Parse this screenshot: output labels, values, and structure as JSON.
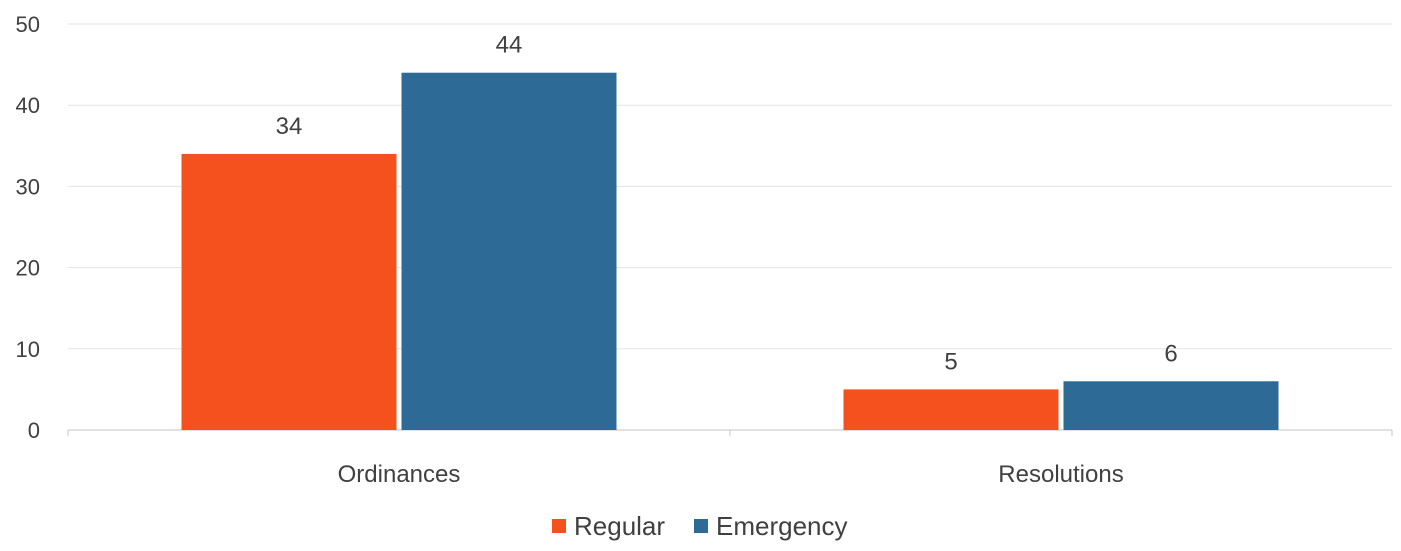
{
  "chart_data": {
    "type": "bar",
    "categories": [
      "Ordinances",
      "Resolutions"
    ],
    "series": [
      {
        "name": "Regular",
        "values": [
          34,
          5
        ],
        "color": "#F4511E"
      },
      {
        "name": "Emergency",
        "values": [
          44,
          6
        ],
        "color": "#2E6A96"
      }
    ],
    "data_labels": [
      [
        "34",
        "5"
      ],
      [
        "44",
        "6"
      ]
    ],
    "ylim": [
      0,
      50
    ],
    "yticks": [
      0,
      10,
      20,
      30,
      40,
      50
    ],
    "grid": true,
    "legend_position": "bottom"
  }
}
